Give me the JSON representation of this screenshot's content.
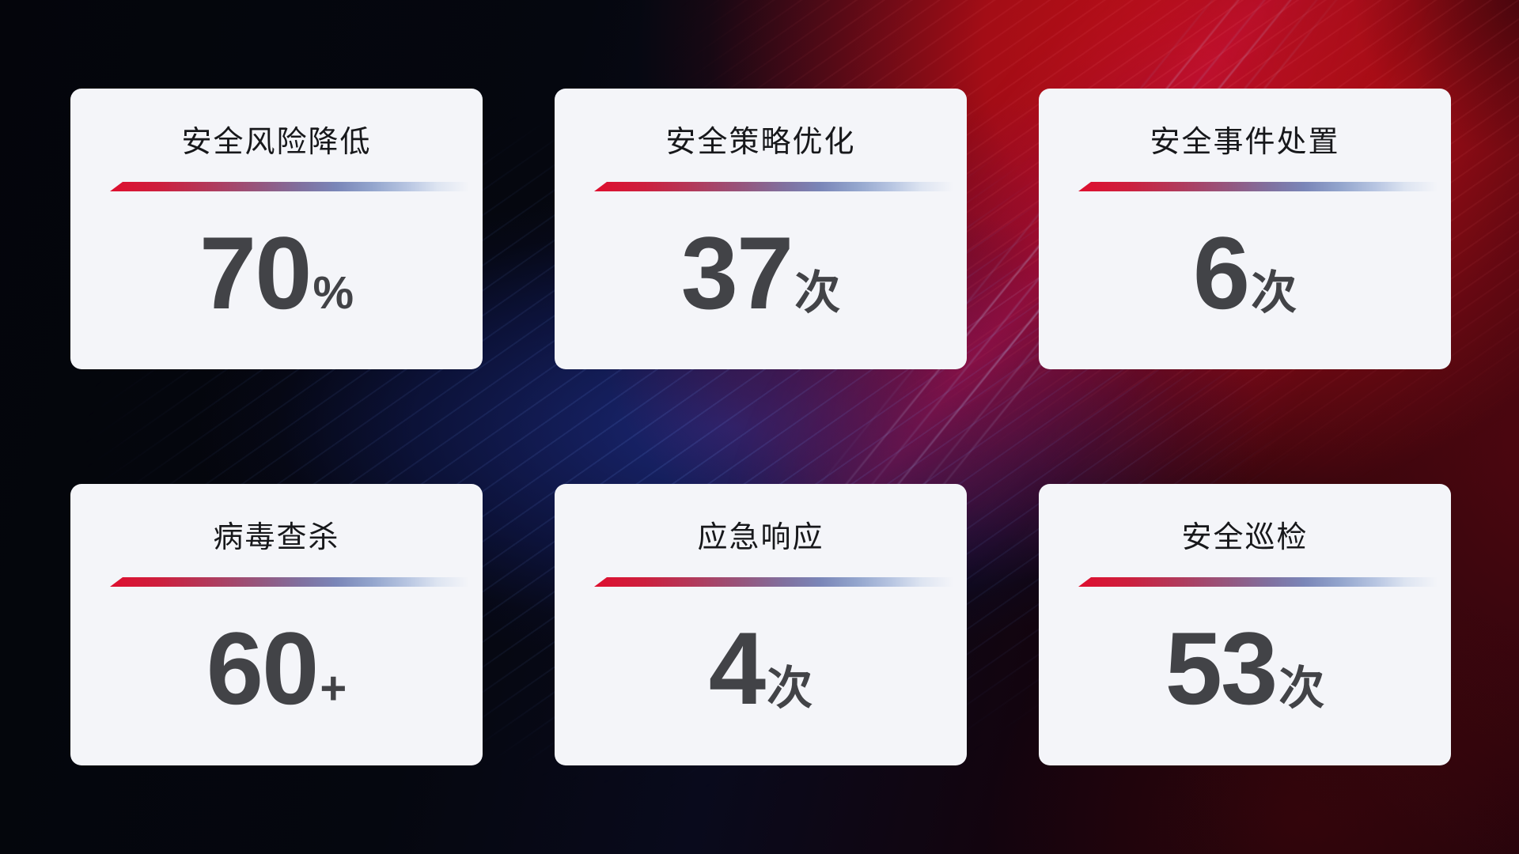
{
  "theme": {
    "background_base": "#05060d",
    "background_red": "#b50d16",
    "background_blue": "#1c2a7d",
    "background_magenta": "#a60e46",
    "card_background": "#f4f5f9",
    "title_color": "#17181b",
    "value_color": "#424347",
    "divider_gradient_start": "#de0f2f",
    "divider_gradient_mid": "#7a86b8",
    "divider_gradient_end": "#f4f6fa"
  },
  "cards": [
    {
      "id": "risk-reduction",
      "title": "安全风险降低",
      "value": "70",
      "unit": "%"
    },
    {
      "id": "policy-optimization",
      "title": "安全策略优化",
      "value": "37",
      "unit": "次"
    },
    {
      "id": "incident-handling",
      "title": "安全事件处置",
      "value": "6",
      "unit": "次"
    },
    {
      "id": "virus-scan",
      "title": "病毒查杀",
      "value": "60",
      "unit": "+"
    },
    {
      "id": "emergency-response",
      "title": "应急响应",
      "value": "4",
      "unit": "次"
    },
    {
      "id": "security-inspection",
      "title": "安全巡检",
      "value": "53",
      "unit": "次"
    }
  ]
}
